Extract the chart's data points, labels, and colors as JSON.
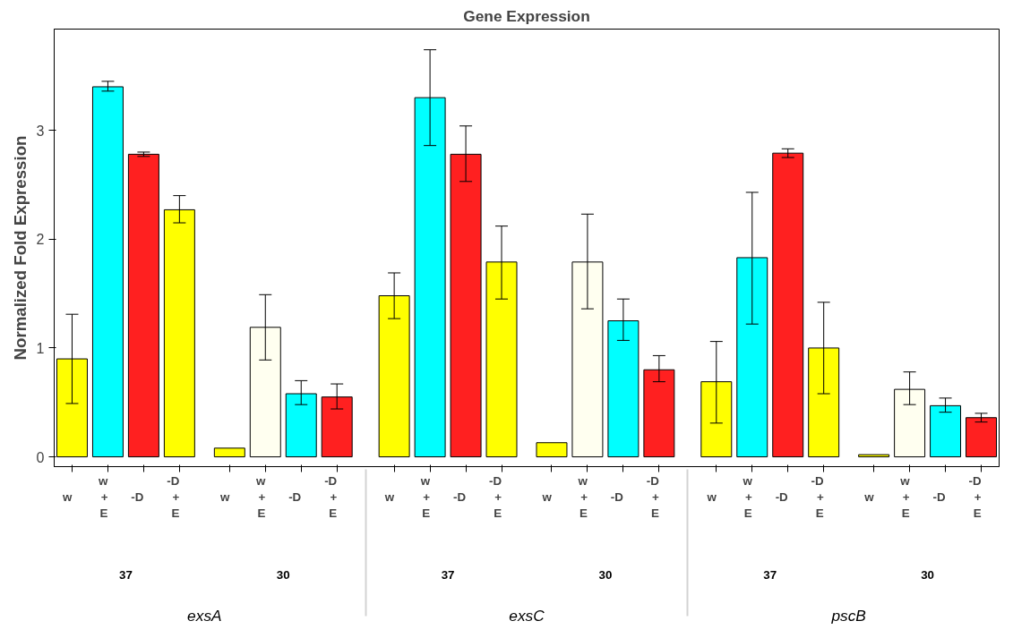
{
  "chart_data": {
    "type": "bar",
    "title": "Gene Expression",
    "ylabel": "Normalized Fold Expression",
    "categories": [
      "w",
      "w\n+\nE",
      "-D",
      "-D\n+\nE",
      "w",
      "w\n+\nE",
      "-D",
      "-D\n+\nE",
      "w",
      "w\n+\nE",
      "-D",
      "-D\n+\nE",
      "w",
      "w\n+\nE",
      "-D",
      "-D\n+\nE",
      "w",
      "w\n+\nE",
      "-D",
      "-D\n+\nE",
      "w",
      "w\n+\nE",
      "-D",
      "-D\n+\nE"
    ],
    "annotations": [
      "37",
      "30",
      "37",
      "30",
      "37",
      "30",
      "exsA",
      "exsC",
      "pscB"
    ],
    "values": [
      0.9,
      3.4,
      2.78,
      2.27,
      0.08,
      1.19,
      0.58,
      0.55,
      1.48,
      3.3,
      2.78,
      1.79,
      0.13,
      1.79,
      1.25,
      0.8,
      0.69,
      1.83,
      2.79,
      1.0,
      0.02,
      0.62,
      0.47,
      0.36
    ],
    "errors": [
      [
        0.49,
        1.31
      ],
      [
        3.36,
        3.45
      ],
      [
        2.76,
        2.8
      ],
      [
        2.15,
        2.4
      ],
      null,
      [
        0.89,
        1.49
      ],
      [
        0.48,
        0.7
      ],
      [
        0.44,
        0.67
      ],
      [
        1.27,
        1.69
      ],
      [
        2.86,
        3.74
      ],
      [
        2.53,
        3.04
      ],
      [
        1.45,
        2.12
      ],
      null,
      [
        1.36,
        2.23
      ],
      [
        1.07,
        1.45
      ],
      [
        0.69,
        0.93
      ],
      [
        0.31,
        1.06
      ],
      [
        1.22,
        2.43
      ],
      [
        2.75,
        2.83
      ],
      [
        0.58,
        1.42
      ],
      null,
      [
        0.48,
        0.78
      ],
      [
        0.41,
        0.54
      ],
      [
        0.32,
        0.4
      ]
    ],
    "colors": [
      "#ffff00",
      "#00ffff",
      "#ff2020",
      "#ffff00",
      "#ffff00",
      "#fffff0",
      "#00ffff",
      "#ff2020",
      "#ffff00",
      "#00ffff",
      "#ff2020",
      "#ffff00",
      "#ffff00",
      "#fffff0",
      "#00ffff",
      "#ff2020",
      "#ffff00",
      "#00ffff",
      "#ff2020",
      "#ffff00",
      "#ffff00",
      "#fffff0",
      "#00ffff",
      "#ff2020"
    ],
    "ylim": [
      -0.09,
      3.93
    ],
    "yticks": [
      0,
      1,
      2,
      3
    ],
    "grid": false
  }
}
